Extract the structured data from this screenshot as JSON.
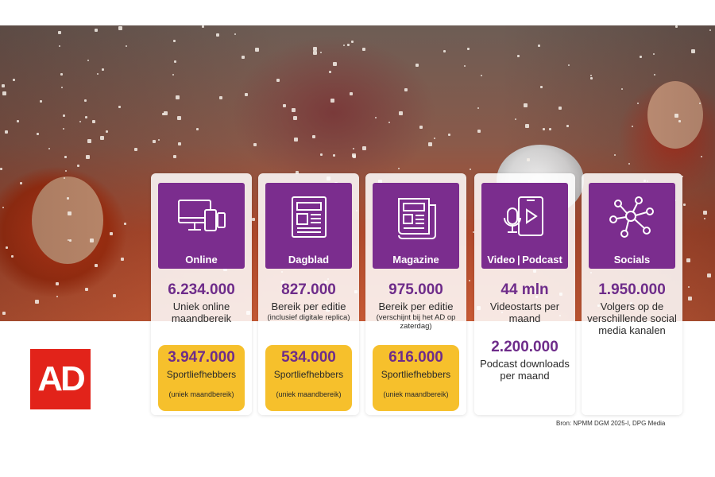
{
  "brand": {
    "logo_text": "AD",
    "logo_color": "#e2231a",
    "accent": "#7b2d8e",
    "highlight": "#f6c02c"
  },
  "cards": [
    {
      "label": "Online",
      "icon": "devices-icon",
      "stat": "6.234.000",
      "desc": "Uniek online maandbereik",
      "note": "",
      "yellow": {
        "value": "3.947.000",
        "label": "Sportliefhebbers",
        "note": "(uniek maandbereik)"
      }
    },
    {
      "label": "Dagblad",
      "icon": "newspaper-icon",
      "stat": "827.000",
      "desc": "Bereik per editie",
      "note": "(inclusief digitale replica)",
      "yellow": {
        "value": "534.000",
        "label": "Sportliefhebbers",
        "note": "(uniek maandbereik)"
      }
    },
    {
      "label": "Magazine",
      "icon": "magazine-icon",
      "stat": "975.000",
      "desc": "Bereik per editie",
      "note": "(verschijnt bij het AD op zaterdag)",
      "yellow": {
        "value": "616.000",
        "label": "Sportliefhebbers",
        "note": "(uniek maandbereik)"
      }
    },
    {
      "label": "Video | Podcast",
      "icon": "video-podcast-icon",
      "stat": "44 mln",
      "desc": "Videostarts per maand",
      "stat2": "2.200.000",
      "desc2": "Podcast downloads per maand"
    },
    {
      "label": "Socials",
      "icon": "network-icon",
      "stat": "1.950.000",
      "desc": "Volgers op de verschillende social media kanalen"
    }
  ],
  "source": "Bron: NPMM DGM 2025-I, DPG Media"
}
